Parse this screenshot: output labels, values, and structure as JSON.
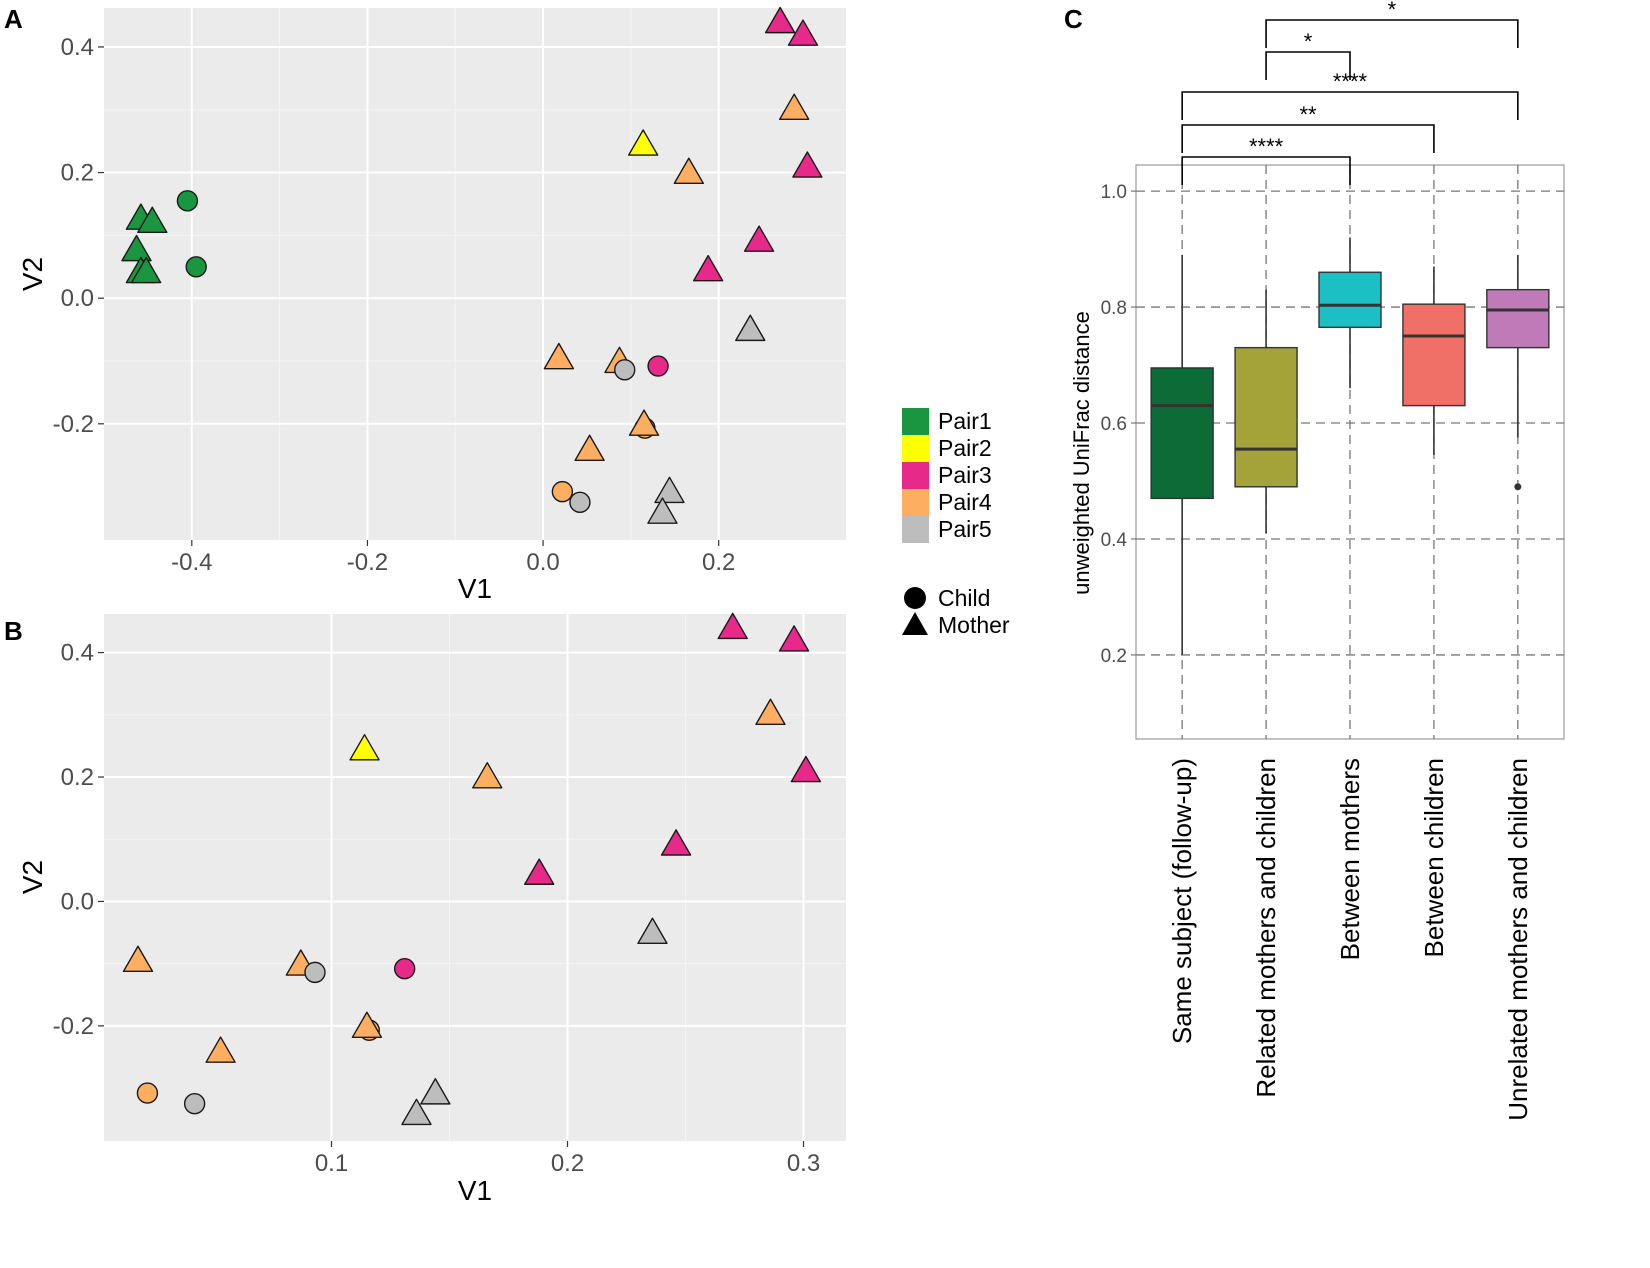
{
  "panels": {
    "a": "A",
    "b": "B",
    "c": "C"
  },
  "legend": {
    "pairs": [
      {
        "label": "Pair1",
        "color": "#1a9641"
      },
      {
        "label": "Pair2",
        "color": "#ffff00"
      },
      {
        "label": "Pair3",
        "color": "#e7298a"
      },
      {
        "label": "Pair4",
        "color": "#fdae61"
      },
      {
        "label": "Pair5",
        "color": "#bdbdbd"
      }
    ],
    "shapes": [
      {
        "label": "Child",
        "shape": "circle"
      },
      {
        "label": "Mother",
        "shape": "triangle"
      }
    ]
  },
  "chart_data": [
    {
      "id": "A",
      "type": "scatter",
      "xlabel": "V1",
      "ylabel": "V2",
      "xlim": [
        -0.5,
        0.345
      ],
      "ylim": [
        -0.385,
        0.462
      ],
      "xticks": [
        -0.4,
        -0.2,
        0.0,
        0.2
      ],
      "xtick_labels": [
        "-0.4",
        "-0.2",
        "0.0",
        "0.2"
      ],
      "yticks": [
        -0.2,
        0.0,
        0.2,
        0.4
      ],
      "ytick_labels": [
        "-0.2",
        "0.0",
        "0.2",
        "0.4"
      ],
      "points": [
        {
          "x": -0.405,
          "y": 0.155,
          "pair": "Pair1",
          "shape": "circle"
        },
        {
          "x": -0.395,
          "y": 0.05,
          "pair": "Pair1",
          "shape": "circle"
        },
        {
          "x": -0.458,
          "y": 0.125,
          "pair": "Pair1",
          "shape": "triangle"
        },
        {
          "x": -0.445,
          "y": 0.12,
          "pair": "Pair1",
          "shape": "triangle"
        },
        {
          "x": -0.463,
          "y": 0.075,
          "pair": "Pair1",
          "shape": "triangle"
        },
        {
          "x": -0.458,
          "y": 0.04,
          "pair": "Pair1",
          "shape": "triangle"
        },
        {
          "x": -0.452,
          "y": 0.04,
          "pair": "Pair1",
          "shape": "triangle"
        },
        {
          "x": 0.114,
          "y": 0.243,
          "pair": "Pair2",
          "shape": "triangle"
        },
        {
          "x": 0.27,
          "y": 0.438,
          "pair": "Pair3",
          "shape": "triangle"
        },
        {
          "x": 0.296,
          "y": 0.418,
          "pair": "Pair3",
          "shape": "triangle"
        },
        {
          "x": 0.301,
          "y": 0.208,
          "pair": "Pair3",
          "shape": "triangle"
        },
        {
          "x": 0.246,
          "y": 0.09,
          "pair": "Pair3",
          "shape": "triangle"
        },
        {
          "x": 0.188,
          "y": 0.043,
          "pair": "Pair3",
          "shape": "triangle"
        },
        {
          "x": 0.131,
          "y": -0.108,
          "pair": "Pair3",
          "shape": "circle"
        },
        {
          "x": 0.286,
          "y": 0.3,
          "pair": "Pair4",
          "shape": "triangle"
        },
        {
          "x": 0.166,
          "y": 0.198,
          "pair": "Pair4",
          "shape": "triangle"
        },
        {
          "x": 0.018,
          "y": -0.097,
          "pair": "Pair4",
          "shape": "triangle"
        },
        {
          "x": 0.087,
          "y": -0.103,
          "pair": "Pair4",
          "shape": "triangle"
        },
        {
          "x": 0.116,
          "y": -0.207,
          "pair": "Pair4",
          "shape": "circle"
        },
        {
          "x": 0.115,
          "y": -0.203,
          "pair": "Pair4",
          "shape": "triangle"
        },
        {
          "x": 0.053,
          "y": -0.243,
          "pair": "Pair4",
          "shape": "triangle"
        },
        {
          "x": 0.022,
          "y": -0.308,
          "pair": "Pair4",
          "shape": "circle"
        },
        {
          "x": 0.093,
          "y": -0.114,
          "pair": "Pair5",
          "shape": "circle"
        },
        {
          "x": 0.042,
          "y": -0.325,
          "pair": "Pair5",
          "shape": "circle"
        },
        {
          "x": 0.236,
          "y": -0.052,
          "pair": "Pair5",
          "shape": "triangle"
        },
        {
          "x": 0.144,
          "y": -0.31,
          "pair": "Pair5",
          "shape": "triangle"
        },
        {
          "x": 0.136,
          "y": -0.343,
          "pair": "Pair5",
          "shape": "triangle"
        }
      ]
    },
    {
      "id": "B",
      "type": "scatter",
      "xlabel": "V1",
      "ylabel": "V2",
      "xlim": [
        0.0036,
        0.318
      ],
      "ylim": [
        -0.385,
        0.462
      ],
      "xticks": [
        0.1,
        0.2,
        0.3
      ],
      "xtick_labels": [
        "0.1",
        "0.2",
        "0.3"
      ],
      "yticks": [
        -0.2,
        0.0,
        0.2,
        0.4
      ],
      "ytick_labels": [
        "-0.2",
        "0.0",
        "0.2",
        "0.4"
      ],
      "points": [
        {
          "x": 0.114,
          "y": 0.243,
          "pair": "Pair2",
          "shape": "triangle"
        },
        {
          "x": 0.27,
          "y": 0.438,
          "pair": "Pair3",
          "shape": "triangle"
        },
        {
          "x": 0.296,
          "y": 0.418,
          "pair": "Pair3",
          "shape": "triangle"
        },
        {
          "x": 0.301,
          "y": 0.208,
          "pair": "Pair3",
          "shape": "triangle"
        },
        {
          "x": 0.246,
          "y": 0.09,
          "pair": "Pair3",
          "shape": "triangle"
        },
        {
          "x": 0.188,
          "y": 0.043,
          "pair": "Pair3",
          "shape": "triangle"
        },
        {
          "x": 0.131,
          "y": -0.108,
          "pair": "Pair3",
          "shape": "circle"
        },
        {
          "x": 0.286,
          "y": 0.3,
          "pair": "Pair4",
          "shape": "triangle"
        },
        {
          "x": 0.166,
          "y": 0.198,
          "pair": "Pair4",
          "shape": "triangle"
        },
        {
          "x": 0.018,
          "y": -0.097,
          "pair": "Pair4",
          "shape": "triangle"
        },
        {
          "x": 0.087,
          "y": -0.103,
          "pair": "Pair4",
          "shape": "triangle"
        },
        {
          "x": 0.116,
          "y": -0.207,
          "pair": "Pair4",
          "shape": "circle"
        },
        {
          "x": 0.115,
          "y": -0.203,
          "pair": "Pair4",
          "shape": "triangle"
        },
        {
          "x": 0.053,
          "y": -0.243,
          "pair": "Pair4",
          "shape": "triangle"
        },
        {
          "x": 0.022,
          "y": -0.308,
          "pair": "Pair4",
          "shape": "circle"
        },
        {
          "x": 0.093,
          "y": -0.114,
          "pair": "Pair5",
          "shape": "circle"
        },
        {
          "x": 0.042,
          "y": -0.325,
          "pair": "Pair5",
          "shape": "circle"
        },
        {
          "x": 0.236,
          "y": -0.052,
          "pair": "Pair5",
          "shape": "triangle"
        },
        {
          "x": 0.144,
          "y": -0.31,
          "pair": "Pair5",
          "shape": "triangle"
        },
        {
          "x": 0.136,
          "y": -0.343,
          "pair": "Pair5",
          "shape": "triangle"
        }
      ]
    },
    {
      "id": "C",
      "type": "box",
      "ylabel": "unweighted UniFrac distance",
      "ylim": [
        0.055,
        1.045
      ],
      "yticks": [
        0.2,
        0.4,
        0.6,
        0.8,
        1.0
      ],
      "ytick_labels": [
        "0.2",
        "0.4",
        "0.6",
        "0.8",
        "1.0"
      ],
      "categories": [
        "Same subject (follow-up)",
        "Related mothers and children",
        "Between mothers",
        "Between children",
        "Unrelated mothers and children"
      ],
      "boxes": [
        {
          "q1": 0.47,
          "median": 0.63,
          "q3": 0.695,
          "whisker_low": 0.2,
          "whisker_high": 0.89,
          "color": "#0d6b38",
          "outliers": []
        },
        {
          "q1": 0.49,
          "median": 0.555,
          "q3": 0.73,
          "whisker_low": 0.41,
          "whisker_high": 0.83,
          "color": "#a3a33a",
          "outliers": []
        },
        {
          "q1": 0.765,
          "median": 0.803,
          "q3": 0.86,
          "whisker_low": 0.66,
          "whisker_high": 0.92,
          "color": "#1bbfc4",
          "outliers": []
        },
        {
          "q1": 0.63,
          "median": 0.75,
          "q3": 0.805,
          "whisker_low": 0.545,
          "whisker_high": 0.87,
          "color": "#f07067",
          "outliers": []
        },
        {
          "q1": 0.73,
          "median": 0.795,
          "q3": 0.83,
          "whisker_low": 0.575,
          "whisker_high": 0.89,
          "color": "#c07ab8",
          "outliers": [
            0.49
          ]
        }
      ],
      "significance": [
        {
          "from": 1,
          "to": 3,
          "label": "****"
        },
        {
          "from": 1,
          "to": 4,
          "label": "**"
        },
        {
          "from": 1,
          "to": 5,
          "label": "****"
        },
        {
          "from": 2,
          "to": 3,
          "label": "*"
        },
        {
          "from": 2,
          "to": 5,
          "label": "*"
        }
      ]
    }
  ]
}
